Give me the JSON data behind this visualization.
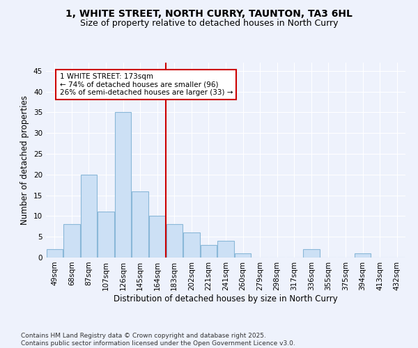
{
  "title_line1": "1, WHITE STREET, NORTH CURRY, TAUNTON, TA3 6HL",
  "title_line2": "Size of property relative to detached houses in North Curry",
  "xlabel": "Distribution of detached houses by size in North Curry",
  "ylabel": "Number of detached properties",
  "categories": [
    "49sqm",
    "68sqm",
    "87sqm",
    "107sqm",
    "126sqm",
    "145sqm",
    "164sqm",
    "183sqm",
    "202sqm",
    "221sqm",
    "241sqm",
    "260sqm",
    "279sqm",
    "298sqm",
    "317sqm",
    "336sqm",
    "355sqm",
    "375sqm",
    "394sqm",
    "413sqm",
    "432sqm"
  ],
  "values": [
    2,
    8,
    20,
    11,
    35,
    16,
    10,
    8,
    6,
    3,
    4,
    1,
    0,
    0,
    0,
    2,
    0,
    0,
    1,
    0,
    0
  ],
  "bar_color": "#cce0f5",
  "bar_edge_color": "#8ab8d8",
  "vline_index": 6,
  "annotation_text": "1 WHITE STREET: 173sqm\n← 74% of detached houses are smaller (96)\n26% of semi-detached houses are larger (33) →",
  "annotation_box_color": "#ffffff",
  "annotation_box_edge_color": "#cc0000",
  "vline_color": "#cc0000",
  "ylim": [
    0,
    47
  ],
  "yticks": [
    0,
    5,
    10,
    15,
    20,
    25,
    30,
    35,
    40,
    45
  ],
  "background_color": "#eef2fc",
  "footer_text": "Contains HM Land Registry data © Crown copyright and database right 2025.\nContains public sector information licensed under the Open Government Licence v3.0.",
  "title_fontsize": 10,
  "subtitle_fontsize": 9,
  "axis_label_fontsize": 8.5,
  "tick_fontsize": 7.5,
  "annotation_fontsize": 7.5,
  "footer_fontsize": 6.5
}
